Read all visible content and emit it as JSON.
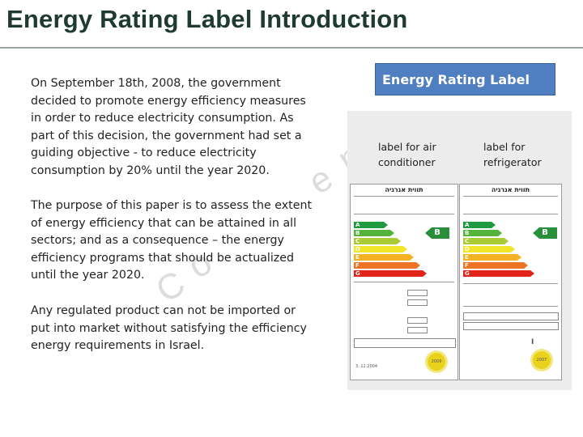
{
  "slide": {
    "title": "Energy Rating Label Introduction",
    "paragraphs": [
      "On September 18th, 2008, the government decided to promote energy efficiency measures in order to reduce electricity consumption. As part of this decision, the government had set a guiding objective - to reduce electricity consumption by 20% until the year 2020.",
      "The purpose of this paper is to assess the extent of energy efficiency that can be attained in all sectors; and as a consequence – the energy efficiency programs that should be actualized until the year 2020.",
      "Any regulated product can not be imported or put into market without satisfying the efficiency energy requirements in Israel."
    ],
    "watermark_letters": [
      "C",
      "o",
      "n",
      "f",
      "i",
      "d",
      "e",
      "n",
      "t",
      "i",
      "a",
      "l"
    ]
  },
  "figure": {
    "header": "Energy Rating Label",
    "captions": {
      "air_conditioner": "label for air conditioner",
      "refrigerator": "label for refrigerator"
    },
    "labels": {
      "air_conditioner": {
        "header_text": "תווית אנרגיה",
        "rating_letter": "B",
        "year_seal": "2009",
        "footer_code": "3..12.2004"
      },
      "refrigerator": {
        "header_text": "תווית אנרגיה",
        "rating_letter": "B",
        "year_seal": "2007",
        "marker": "I"
      }
    },
    "grade_bars": [
      {
        "letter": "A",
        "color": "#1f9a3f"
      },
      {
        "letter": "B",
        "color": "#53b33a"
      },
      {
        "letter": "C",
        "color": "#a9cc35"
      },
      {
        "letter": "D",
        "color": "#f2e62a"
      },
      {
        "letter": "E",
        "color": "#f4b223"
      },
      {
        "letter": "F",
        "color": "#ec7424"
      },
      {
        "letter": "G",
        "color": "#e2231a"
      }
    ]
  }
}
